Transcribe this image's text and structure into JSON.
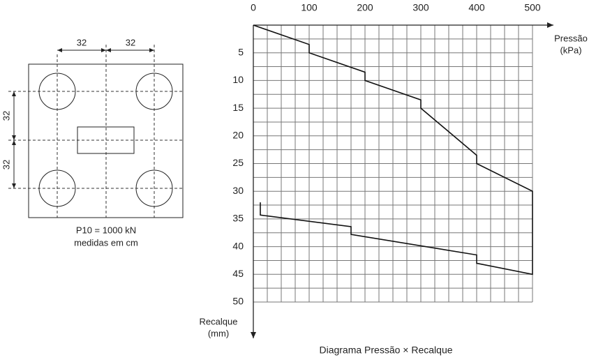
{
  "drawing": {
    "dim_top": [
      "32",
      "32"
    ],
    "dim_left": [
      "32",
      "32"
    ],
    "caption": [
      "P10 = 1000 kN",
      "medidas em cm"
    ]
  },
  "chart_data": {
    "type": "line",
    "title": "Diagrama Pressão × Recalque",
    "x_label": [
      "Pressão",
      "(kPa)"
    ],
    "y_label": [
      "Recalque",
      "(mm)"
    ],
    "xlim": [
      0,
      500
    ],
    "xticks": [
      0,
      100,
      200,
      300,
      400,
      500
    ],
    "ylim": [
      0,
      50
    ],
    "yticks": [
      5,
      10,
      15,
      20,
      25,
      30,
      35,
      40,
      45,
      50
    ],
    "grid": true,
    "y_inverted": true,
    "x_axis_position": "top",
    "series": [
      {
        "color": "#111111",
        "x": [
          0,
          100,
          100,
          200,
          200,
          300,
          300,
          400,
          400,
          500,
          500,
          400,
          400,
          175,
          175,
          12.5,
          12.5
        ],
        "values": [
          0,
          3.5,
          5,
          8.5,
          10,
          13.5,
          15,
          23.5,
          25,
          30,
          45,
          43,
          41.5,
          37.8,
          36.4,
          34.3,
          32
        ]
      }
    ]
  }
}
